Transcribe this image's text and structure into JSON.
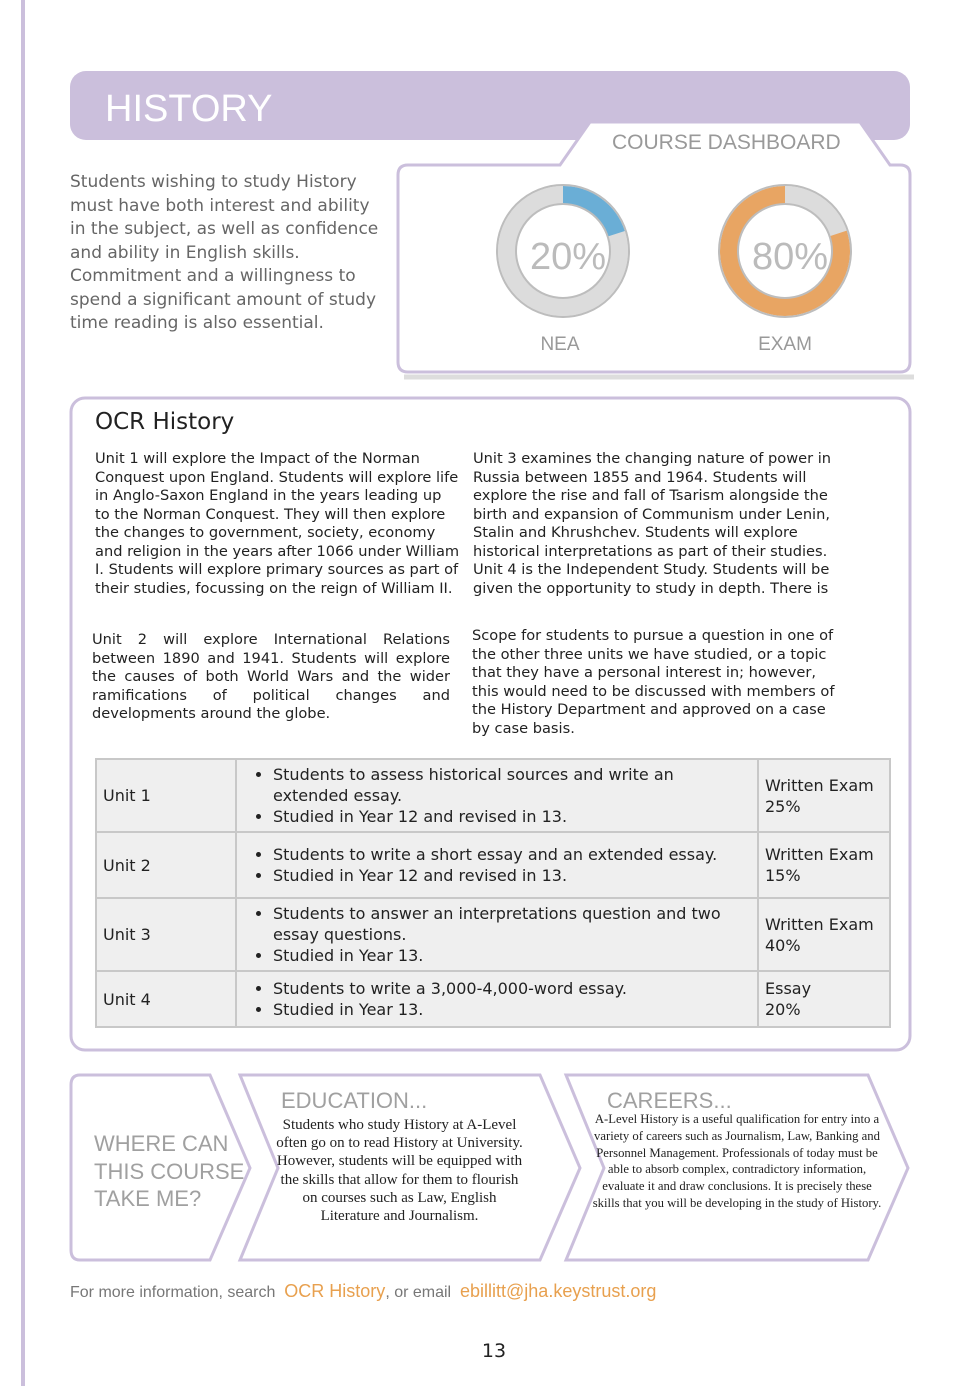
{
  "header": {
    "title": "HISTORY"
  },
  "intro": "Students wishing to study History must have both interest and ability in the subject, as well as confidence and ability in English skills. Commitment and a willingness to spend a significant amount of study time reading is also essential.",
  "dashboard": {
    "title": "COURSE DASHBOARD",
    "items": [
      {
        "label": "NEA",
        "value": 20,
        "value_label": "20%",
        "color": "#6aaed6"
      },
      {
        "label": "EXAM",
        "value": 80,
        "value_label": "80%",
        "color": "#e8a563"
      }
    ]
  },
  "course": {
    "title": "OCR History",
    "paragraphs": [
      "Unit 1 will explore the Impact of the Norman Conquest upon England. Students will explore life in Anglo-Saxon England in the years leading up to the Norman Conquest. They will then explore the changes to government, society, economy and religion in the years after 1066 under William I. Students will explore primary sources as part of their studies, focussing on the reign of William II.",
      "Unit 3 examines the changing nature of power in Russia between 1855 and 1964. Students will explore the rise and fall of Tsarism alongside the birth and expansion of Communism under Lenin, Stalin and Khrushchev. Students will explore historical interpretations as part of their studies. Unit 4 is the Independent Study. Students will be given the opportunity to study in depth. There is",
      "Unit 2 will explore International Relations between 1890 and 1941. Students will explore the causes of both World Wars and the wider ramifications of political changes and developments around the globe.",
      "Scope for students to pursue a question in one of the other three units we have studied, or a topic that they have a personal interest in; however, this would need to be discussed with members of the History Department and approved on a case by case basis."
    ]
  },
  "table": {
    "rows": [
      {
        "unit": "Unit 1",
        "bullets": [
          "Students to assess historical sources and write an extended essay.",
          "Studied in Year 12 and revised in 13."
        ],
        "assessment": "Written Exam",
        "weight": "25%"
      },
      {
        "unit": "Unit 2",
        "bullets": [
          "Students to write a short essay and an extended essay.",
          "Studied in Year 12 and revised in 13."
        ],
        "assessment": "Written Exam",
        "weight": "15%"
      },
      {
        "unit": "Unit 3",
        "bullets": [
          "Students to answer an interpretations question and two essay questions.",
          "Studied in Year 13."
        ],
        "assessment": "Written Exam",
        "weight": "40%"
      },
      {
        "unit": "Unit 4",
        "bullets": [
          "Students to write a 3,000-4,000-word essay.",
          "Studied in Year 13."
        ],
        "assessment": "Essay",
        "weight": "20%"
      }
    ]
  },
  "pathways": {
    "title": "WHERE CAN THIS COURSE TAKE ME?",
    "education": {
      "title": "EDUCATION...",
      "text": "Students who study History at A-Level often go on to read History at University. However, students will be equipped with the skills that allow for them to flourish on courses such as Law, English Literature and Journalism."
    },
    "careers": {
      "title": "CAREERS...",
      "text": "A-Level History is a useful qualification for entry into a variety of careers such as Journalism, Law, Banking and Personnel Management. Professionals of today must be able to absorb complex, contradictory information, evaluate it and draw conclusions. It is precisely these skills that you will be developing in the study of History."
    }
  },
  "footer": {
    "prefix": "For more information, search",
    "link": "OCR History",
    "middle": ", or email",
    "email": "ebillitt@jha.keystrust.org"
  },
  "page_number": 13
}
